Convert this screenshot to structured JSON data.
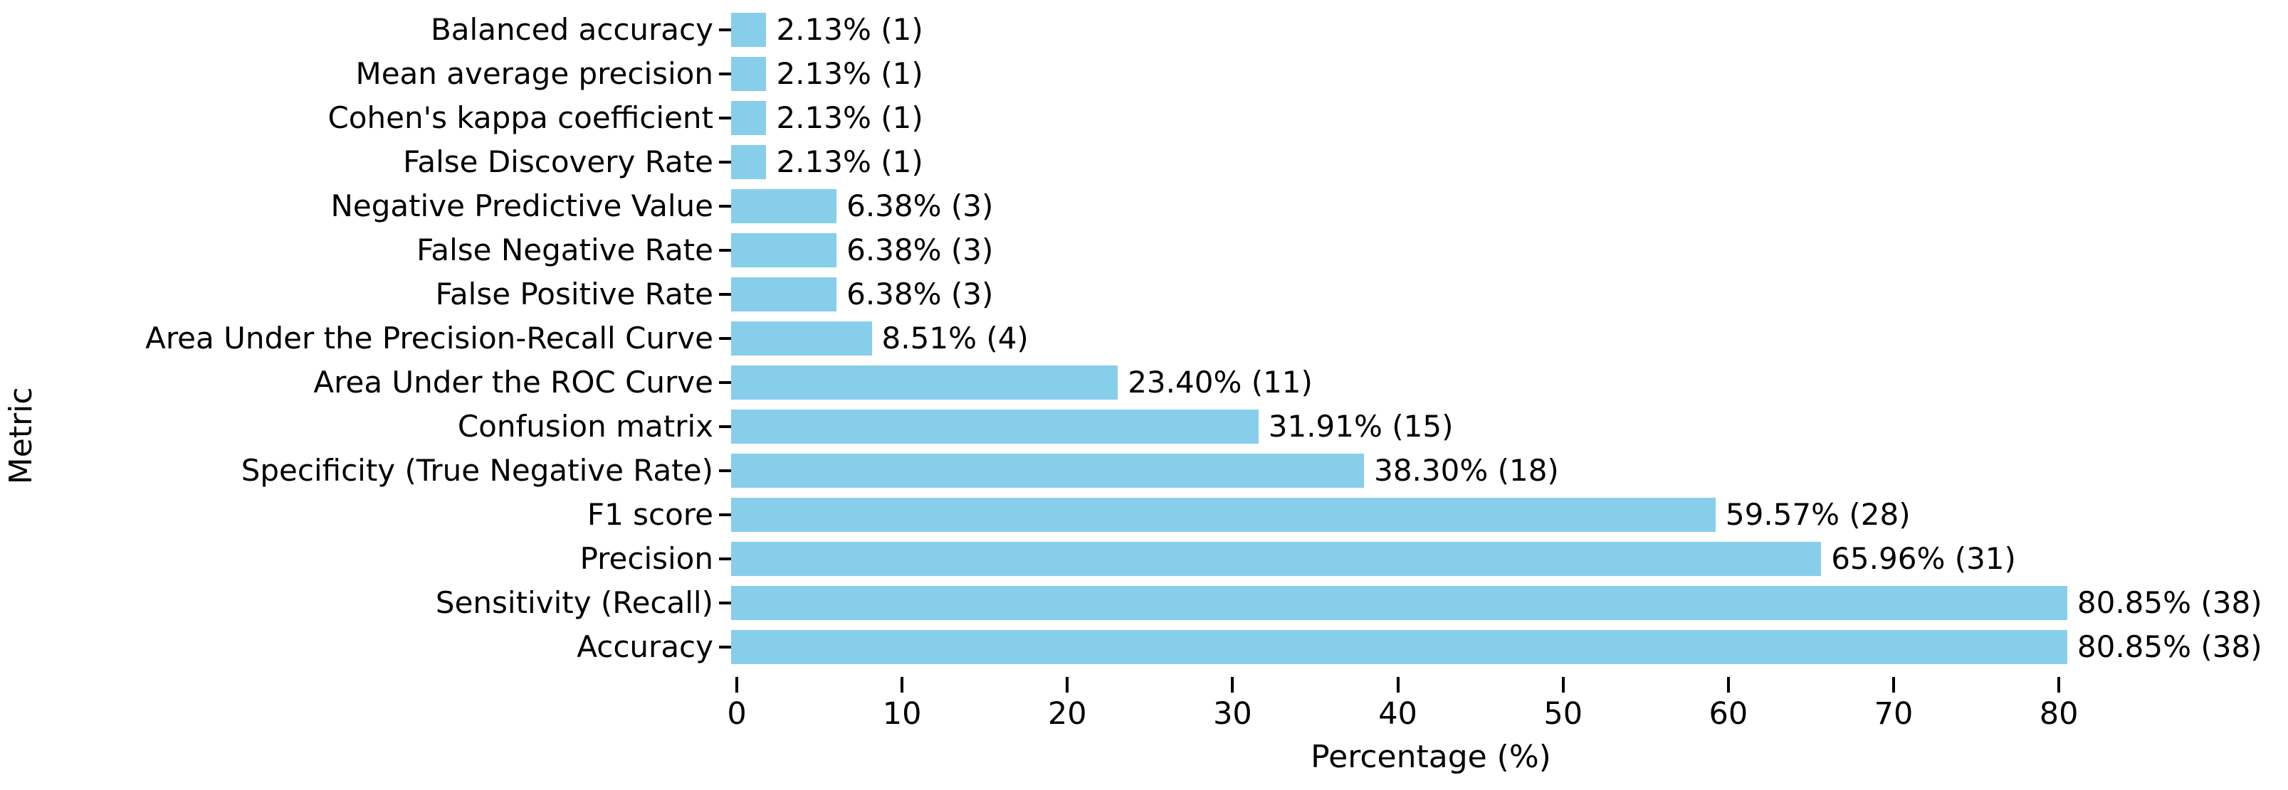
{
  "chart_data": {
    "type": "bar",
    "orientation": "horizontal",
    "title": "",
    "xlabel": "Percentage (%)",
    "ylabel": "Metric",
    "xlim": [
      0,
      84
    ],
    "x_ticks": [
      0,
      10,
      20,
      30,
      40,
      50,
      60,
      70,
      80
    ],
    "grid": "off",
    "legend": "none",
    "bar_color": "#87CEEB",
    "text_color": "#000000",
    "categories": [
      "Balanced accuracy",
      "Mean average precision",
      "Cohen's kappa coefficient",
      "False Discovery Rate",
      "Negative Predictive Value",
      "False Negative Rate",
      "False Positive Rate",
      "Area Under the Precision-Recall Curve",
      "Area Under the ROC Curve",
      "Confusion matrix",
      "Specificity (True Negative Rate)",
      "F1 score",
      "Precision",
      "Sensitivity (Recall)",
      "Accuracy"
    ],
    "values": [
      2.13,
      2.13,
      2.13,
      2.13,
      6.38,
      6.38,
      6.38,
      8.51,
      23.4,
      31.91,
      38.3,
      59.57,
      65.96,
      80.85,
      80.85
    ],
    "counts": [
      1,
      1,
      1,
      1,
      3,
      3,
      3,
      4,
      11,
      15,
      18,
      28,
      31,
      38,
      38
    ],
    "bar_labels": [
      "2.13% (1)",
      "2.13% (1)",
      "2.13% (1)",
      "2.13% (1)",
      "6.38% (3)",
      "6.38% (3)",
      "6.38% (3)",
      "8.51% (4)",
      "23.40% (11)",
      "31.91% (15)",
      "38.30% (18)",
      "59.57% (28)",
      "65.96% (31)",
      "80.85% (38)",
      "80.85% (38)"
    ]
  }
}
